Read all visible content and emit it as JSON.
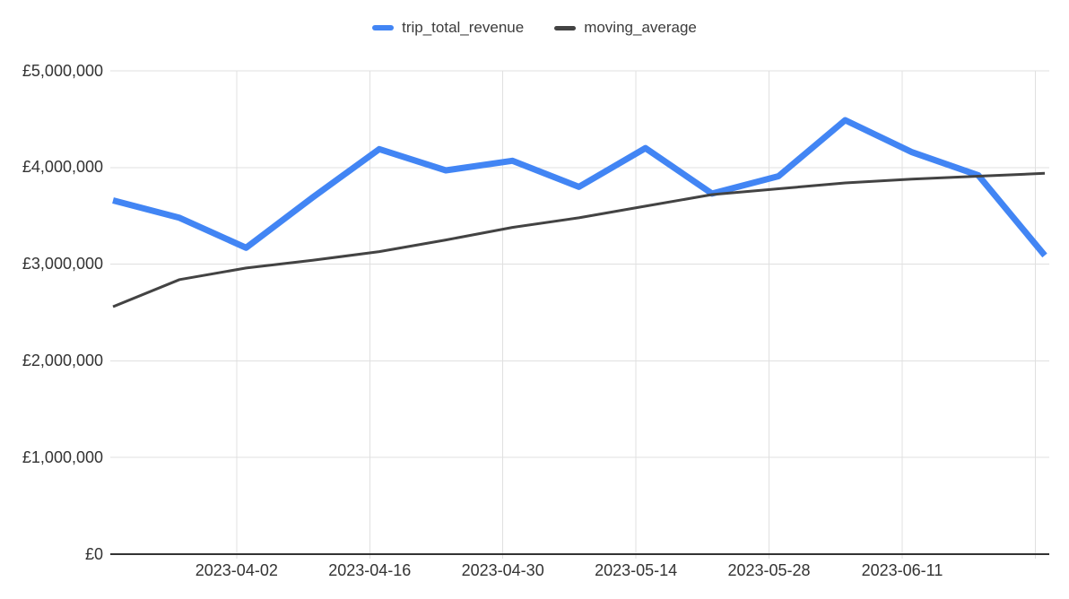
{
  "legend": {
    "items": [
      "trip_total_revenue",
      "moving_average"
    ]
  },
  "colors": {
    "series_blue": "#4285f4",
    "series_gray": "#434343",
    "gridline": "#e0e0e0",
    "axis_line": "#333333",
    "tick_text": "#333333",
    "legend_text": "#3c3c3c",
    "background": "#ffffff"
  },
  "chart_data": {
    "type": "line",
    "title": "",
    "xlabel": "",
    "ylabel": "",
    "grid": true,
    "legend_position": "top",
    "ylim": [
      0,
      5000000
    ],
    "y_tick_labels": [
      "£0",
      "£1,000,000",
      "£2,000,000",
      "£3,000,000",
      "£4,000,000",
      "£5,000,000"
    ],
    "x_tick_labels": [
      "2023-04-02",
      "2023-04-16",
      "2023-04-30",
      "2023-05-14",
      "2023-05-28",
      "2023-06-11"
    ],
    "x_gridline_dates": [
      "2023-04-02",
      "2023-04-16",
      "2023-04-30",
      "2023-05-14",
      "2023-05-28",
      "2023-06-11",
      "2023-06-25"
    ],
    "x": [
      "2023-03-20",
      "2023-03-27",
      "2023-04-03",
      "2023-04-10",
      "2023-04-17",
      "2023-04-24",
      "2023-05-01",
      "2023-05-08",
      "2023-05-15",
      "2023-05-22",
      "2023-05-29",
      "2023-06-05",
      "2023-06-12",
      "2023-06-19",
      "2023-06-26"
    ],
    "series": [
      {
        "name": "trip_total_revenue",
        "color": "#4285f4",
        "values": [
          3660000,
          3480000,
          3170000,
          3690000,
          4190000,
          3970000,
          4070000,
          3800000,
          4200000,
          3730000,
          3910000,
          4490000,
          4160000,
          3920000,
          3090000
        ]
      },
      {
        "name": "moving_average",
        "color": "#434343",
        "values": [
          2560000,
          2840000,
          2960000,
          3040000,
          3130000,
          3250000,
          3380000,
          3480000,
          3600000,
          3720000,
          3780000,
          3840000,
          3880000,
          3910000,
          3940000
        ]
      }
    ]
  }
}
